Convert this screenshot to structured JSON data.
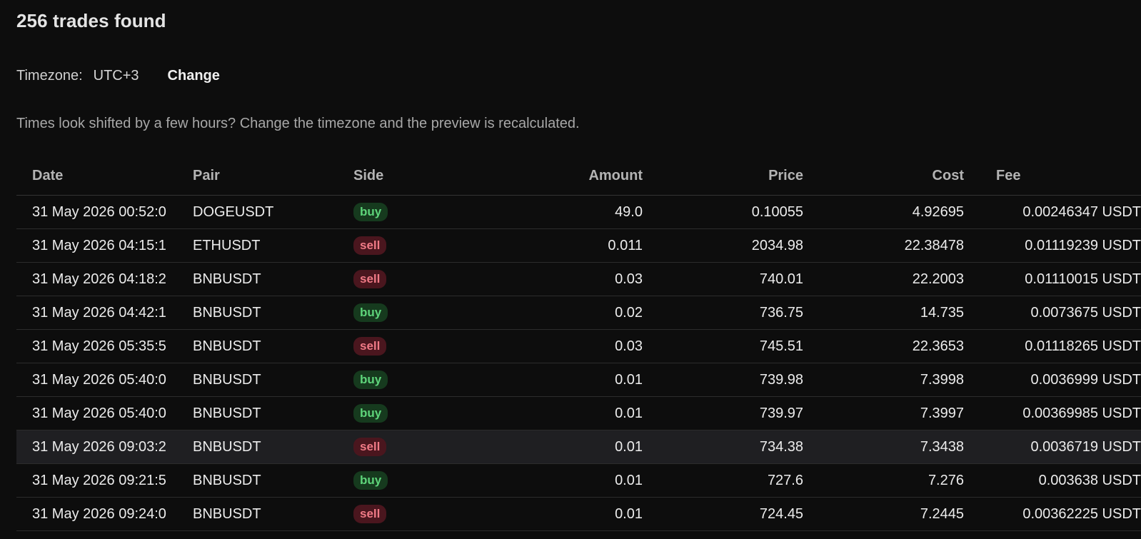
{
  "header": {
    "title": "256 trades found"
  },
  "timezone": {
    "label": "Timezone:",
    "value": "UTC+3",
    "change_label": "Change"
  },
  "hint": "Times look shifted by a few hours? Change the timezone and the preview is recalculated.",
  "table": {
    "columns": [
      "Date",
      "Pair",
      "Side",
      "Amount",
      "Price",
      "Cost",
      "Fee"
    ],
    "rows": [
      {
        "date": "31 May 2026 00:52:0",
        "pair": "DOGEUSDT",
        "side": "buy",
        "amount": "49.0",
        "price": "0.10055",
        "cost": "4.92695",
        "fee": "0.00246347 USDT"
      },
      {
        "date": "31 May 2026 04:15:1",
        "pair": "ETHUSDT",
        "side": "sell",
        "amount": "0.011",
        "price": "2034.98",
        "cost": "22.38478",
        "fee": "0.01119239 USDT"
      },
      {
        "date": "31 May 2026 04:18:2",
        "pair": "BNBUSDT",
        "side": "sell",
        "amount": "0.03",
        "price": "740.01",
        "cost": "22.2003",
        "fee": "0.01110015 USDT"
      },
      {
        "date": "31 May 2026 04:42:1",
        "pair": "BNBUSDT",
        "side": "buy",
        "amount": "0.02",
        "price": "736.75",
        "cost": "14.735",
        "fee": "0.0073675 USDT"
      },
      {
        "date": "31 May 2026 05:35:5",
        "pair": "BNBUSDT",
        "side": "sell",
        "amount": "0.03",
        "price": "745.51",
        "cost": "22.3653",
        "fee": "0.01118265 USDT"
      },
      {
        "date": "31 May 2026 05:40:0",
        "pair": "BNBUSDT",
        "side": "buy",
        "amount": "0.01",
        "price": "739.98",
        "cost": "7.3998",
        "fee": "0.0036999 USDT"
      },
      {
        "date": "31 May 2026 05:40:0",
        "pair": "BNBUSDT",
        "side": "buy",
        "amount": "0.01",
        "price": "739.97",
        "cost": "7.3997",
        "fee": "0.00369985 USDT"
      },
      {
        "date": "31 May 2026 09:03:2",
        "pair": "BNBUSDT",
        "side": "sell",
        "amount": "0.01",
        "price": "734.38",
        "cost": "7.3438",
        "fee": "0.0036719 USDT"
      },
      {
        "date": "31 May 2026 09:21:5",
        "pair": "BNBUSDT",
        "side": "buy",
        "amount": "0.01",
        "price": "727.6",
        "cost": "7.276",
        "fee": "0.003638 USDT"
      },
      {
        "date": "31 May 2026 09:24:0",
        "pair": "BNBUSDT",
        "side": "sell",
        "amount": "0.01",
        "price": "724.45",
        "cost": "7.2445",
        "fee": "0.00362225 USDT"
      }
    ],
    "highlighted_row": 7
  },
  "colors": {
    "background": "#0d0d0d",
    "buy_bg": "#163a1e",
    "buy_text": "#5ed47a",
    "sell_bg": "#4a161e",
    "sell_text": "#f07a86"
  }
}
